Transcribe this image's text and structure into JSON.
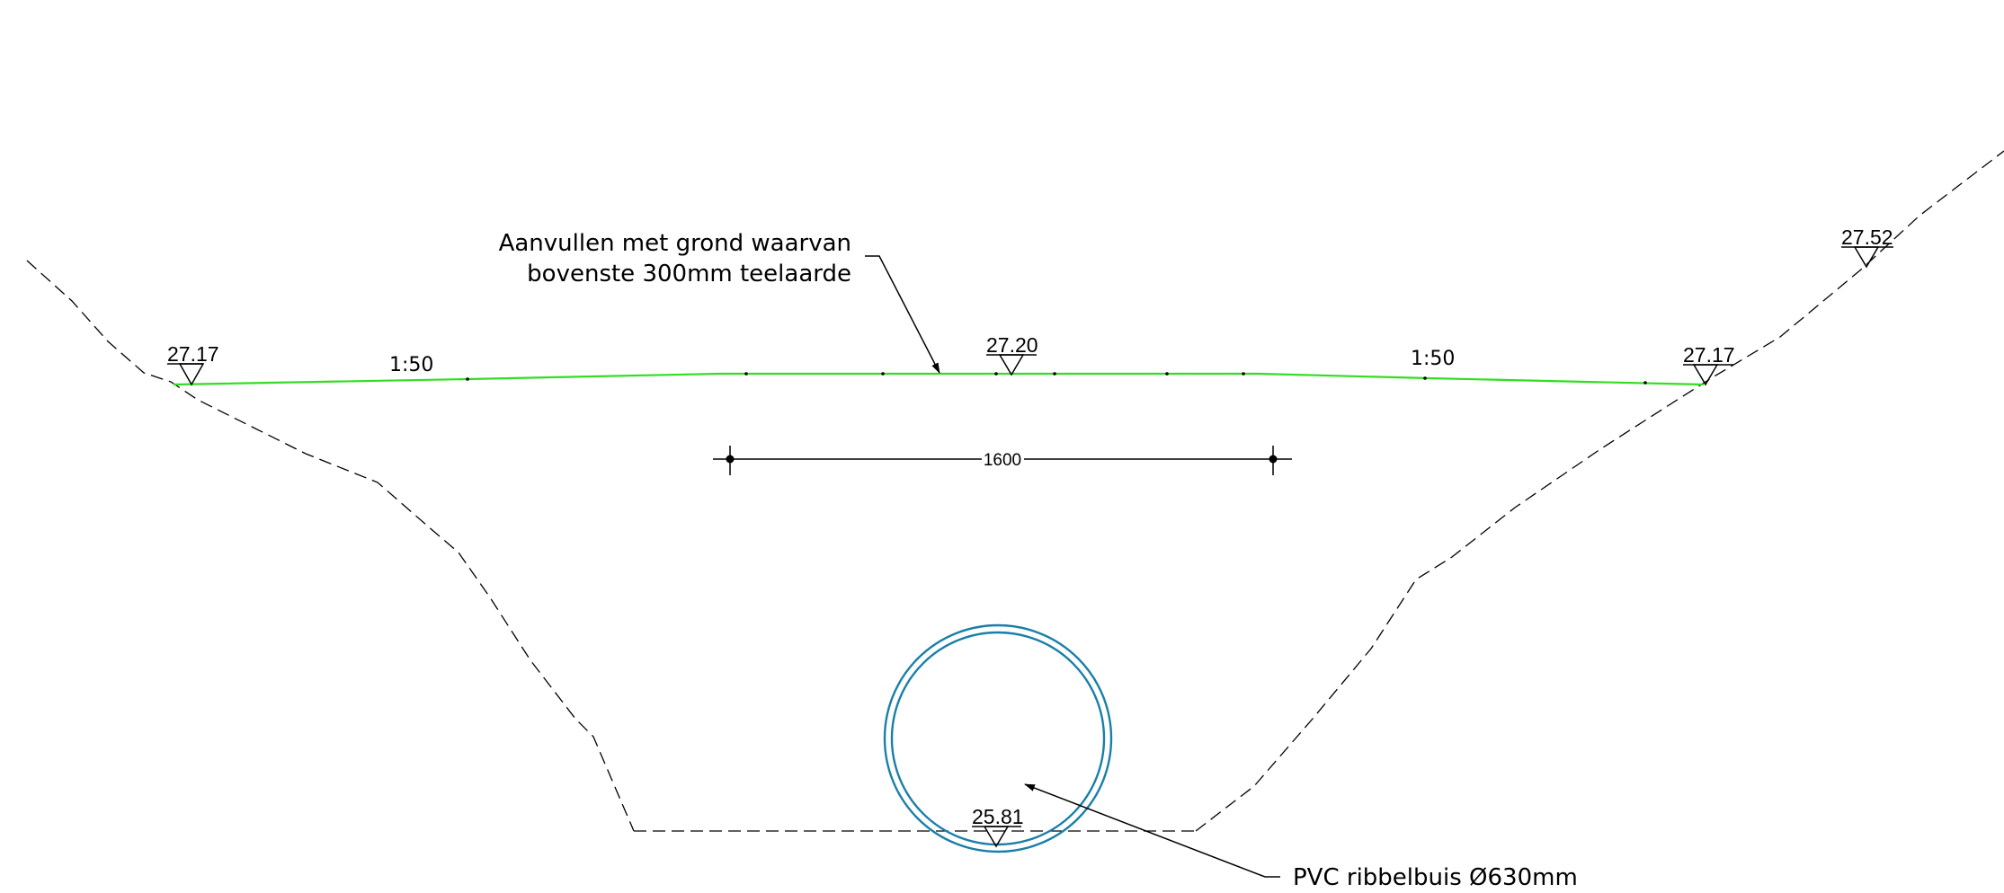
{
  "colors": {
    "ground_line": "#000000",
    "fill_surface": "#33dd22",
    "pipe": "#1a7fa8",
    "text": "#000000",
    "background": "#ffffff"
  },
  "annotations": {
    "fill_note_line1": "Aanvullen met grond waarvan",
    "fill_note_line2": "bovenste 300mm teelaarde",
    "pipe_note": "PVC ribbelbuis Ø630mm"
  },
  "levels": {
    "left_surface": "27.17",
    "center_surface": "27.20",
    "right_surface": "27.17",
    "right_top": "27.52",
    "pipe_invert": "25.81"
  },
  "slopes": {
    "left": "1:50",
    "right": "1:50"
  },
  "dimensions": {
    "trench_width": "1600"
  },
  "icons": {
    "level_marker": "triangle-level-icon",
    "arrow": "leader-arrow-icon",
    "dimension_tick": "dimension-tick-icon"
  }
}
